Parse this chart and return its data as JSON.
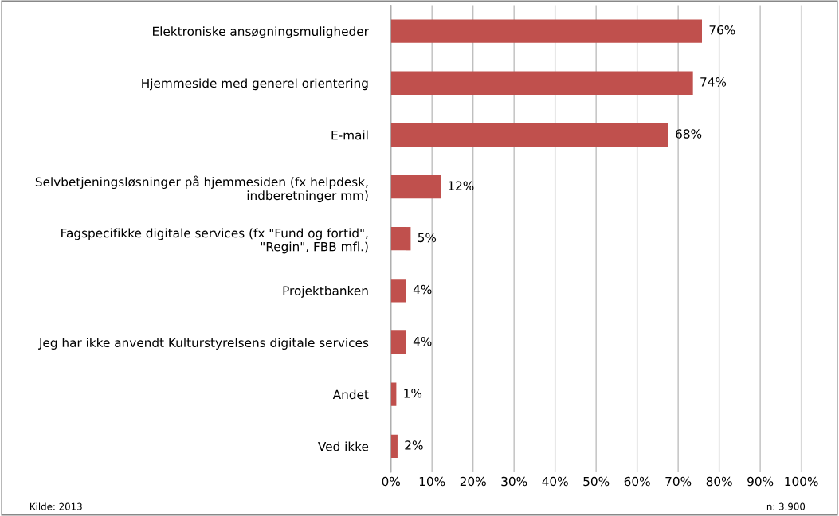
{
  "chart_data": {
    "type": "bar",
    "orientation": "horizontal",
    "categories": [
      "Elektroniske ansøgningsmuligheder",
      "Hjemmeside med generel orientering",
      "E-mail",
      "Selvbetjeningsløsninger på hjemmesiden (fx helpdesk,\nindberetninger mm)",
      "Fagspecifikke digitale services (fx \"Fund og fortid\",\n\"Regin\", FBB mfl.)",
      "Projektbanken",
      "Jeg har ikke anvendt Kulturstyrelsens digitale services",
      "Andet",
      "Ved ikke"
    ],
    "values": [
      75.8,
      73.6,
      67.6,
      12.1,
      4.8,
      3.7,
      3.7,
      1.3,
      1.6
    ],
    "value_labels": [
      "76%",
      "74%",
      "68%",
      "12%",
      "5%",
      "4%",
      "4%",
      "1%",
      "2%"
    ],
    "color": "#c0504d",
    "xlim": [
      0,
      100
    ],
    "xticks": [
      {
        "value": 0,
        "label": "0%"
      },
      {
        "value": 10,
        "label": "10%"
      },
      {
        "value": 20,
        "label": "20%"
      },
      {
        "value": 30,
        "label": "30%"
      },
      {
        "value": 40,
        "label": "40%"
      },
      {
        "value": 50,
        "label": "50%"
      },
      {
        "value": 60,
        "label": "60%"
      },
      {
        "value": 70,
        "label": "70%"
      },
      {
        "value": 80,
        "label": "80%"
      },
      {
        "value": 90,
        "label": "90%"
      },
      {
        "value": 100,
        "label": "100%"
      }
    ],
    "grid": "x",
    "legend": false,
    "annotations": [
      "Kilde: 2013",
      "n: 3.900"
    ]
  }
}
